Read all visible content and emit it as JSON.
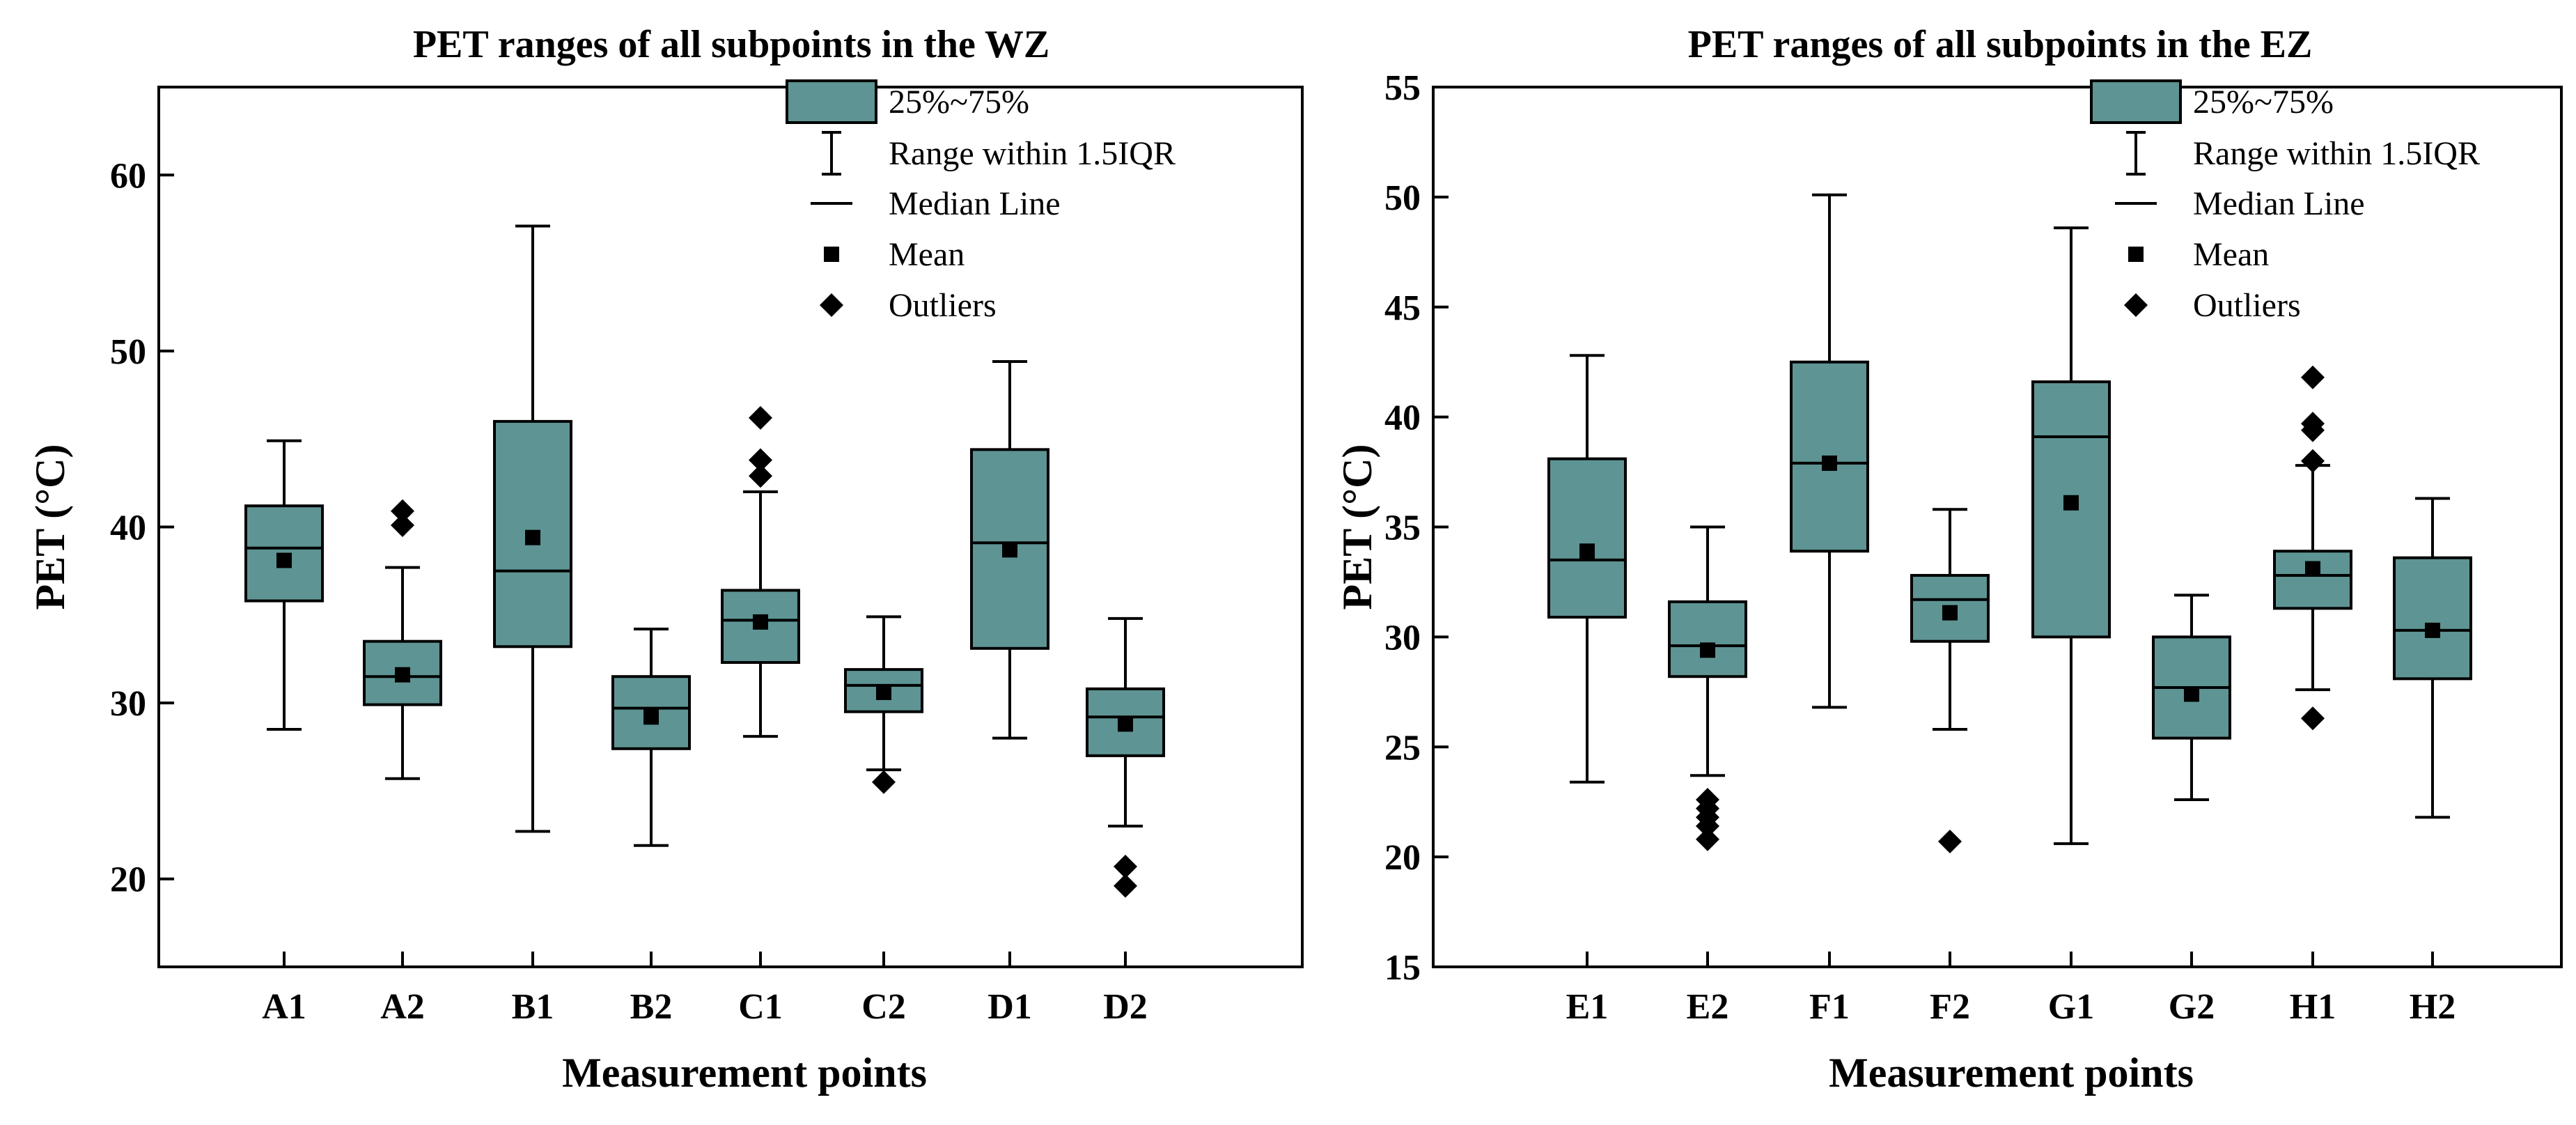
{
  "chart_data": [
    {
      "type": "box",
      "title": "PET ranges of all subpoints in the WZ",
      "xlabel": "Measurement points",
      "ylabel": "PET (°C)",
      "ylim": [
        15,
        65
      ],
      "yticks": [
        20,
        30,
        40,
        50,
        60
      ],
      "box_color": "#5e9494",
      "legend": {
        "position": "top-right",
        "entries": [
          "25%~75%",
          "Range within 1.5IQR",
          "Median Line",
          "Mean",
          "Outliers"
        ]
      },
      "categories": [
        "A1",
        "A2",
        "B1",
        "B2",
        "C1",
        "C2",
        "D1",
        "D2"
      ],
      "boxes": [
        {
          "label": "A1",
          "whisker_low": 28.5,
          "q1": 35.8,
          "median": 38.8,
          "q3": 41.2,
          "whisker_high": 44.9,
          "mean": 38.1,
          "outliers": []
        },
        {
          "label": "A2",
          "whisker_low": 25.7,
          "q1": 29.9,
          "median": 31.5,
          "q3": 33.5,
          "whisker_high": 37.7,
          "mean": 31.6,
          "outliers": [
            40.9,
            40.1
          ]
        },
        {
          "label": "B1",
          "whisker_low": 22.7,
          "q1": 33.2,
          "median": 37.5,
          "q3": 46.0,
          "whisker_high": 57.1,
          "mean": 39.4,
          "outliers": []
        },
        {
          "label": "B2",
          "whisker_low": 21.9,
          "q1": 27.4,
          "median": 29.7,
          "q3": 31.5,
          "whisker_high": 34.2,
          "mean": 29.2,
          "outliers": []
        },
        {
          "label": "C1",
          "whisker_low": 28.1,
          "q1": 32.3,
          "median": 34.7,
          "q3": 36.4,
          "whisker_high": 42.0,
          "mean": 34.6,
          "outliers": [
            46.2,
            43.8,
            42.9
          ]
        },
        {
          "label": "C2",
          "whisker_low": 26.2,
          "q1": 29.5,
          "median": 31.0,
          "q3": 31.9,
          "whisker_high": 34.9,
          "mean": 30.6,
          "outliers": [
            25.5
          ]
        },
        {
          "label": "D1",
          "whisker_low": 28.0,
          "q1": 33.1,
          "median": 39.1,
          "q3": 44.4,
          "whisker_high": 49.4,
          "mean": 38.7,
          "outliers": []
        },
        {
          "label": "D2",
          "whisker_low": 23.0,
          "q1": 27.0,
          "median": 29.2,
          "q3": 30.8,
          "whisker_high": 34.8,
          "mean": 28.8,
          "outliers": [
            20.7,
            19.6
          ]
        }
      ]
    },
    {
      "type": "box",
      "title": "PET ranges of all subpoints in the EZ",
      "xlabel": "Measurement points",
      "ylabel": "PET (°C)",
      "ylim": [
        15,
        55
      ],
      "yticks": [
        15,
        20,
        25,
        30,
        35,
        40,
        45,
        50,
        55
      ],
      "box_color": "#5e9494",
      "legend": {
        "position": "top-right",
        "entries": [
          "25%~75%",
          "Range within 1.5IQR",
          "Median Line",
          "Mean",
          "Outliers"
        ]
      },
      "categories": [
        "E1",
        "E2",
        "F1",
        "F2",
        "G1",
        "G2",
        "H1",
        "H2"
      ],
      "boxes": [
        {
          "label": "E1",
          "whisker_low": 23.4,
          "q1": 30.9,
          "median": 33.5,
          "q3": 38.1,
          "whisker_high": 42.8,
          "mean": 33.9,
          "outliers": []
        },
        {
          "label": "E2",
          "whisker_low": 23.7,
          "q1": 28.2,
          "median": 29.6,
          "q3": 31.6,
          "whisker_high": 35.0,
          "mean": 29.4,
          "outliers": [
            22.6,
            22.2,
            21.8,
            21.4,
            20.8
          ]
        },
        {
          "label": "F1",
          "whisker_low": 26.8,
          "q1": 33.9,
          "median": 37.9,
          "q3": 42.5,
          "whisker_high": 50.1,
          "mean": 37.9,
          "outliers": []
        },
        {
          "label": "F2",
          "whisker_low": 25.8,
          "q1": 29.8,
          "median": 31.7,
          "q3": 32.8,
          "whisker_high": 35.8,
          "mean": 31.1,
          "outliers": [
            20.7
          ]
        },
        {
          "label": "G1",
          "whisker_low": 20.6,
          "q1": 30.0,
          "median": 39.1,
          "q3": 41.6,
          "whisker_high": 48.6,
          "mean": 36.1,
          "outliers": []
        },
        {
          "label": "G2",
          "whisker_low": 22.6,
          "q1": 25.4,
          "median": 27.7,
          "q3": 30.0,
          "whisker_high": 31.9,
          "mean": 27.4,
          "outliers": []
        },
        {
          "label": "H1",
          "whisker_low": 27.6,
          "q1": 31.3,
          "median": 32.8,
          "q3": 33.9,
          "whisker_high": 37.8,
          "mean": 33.1,
          "outliers": [
            41.8,
            39.7,
            39.4,
            38.0,
            26.3
          ]
        },
        {
          "label": "H2",
          "whisker_low": 21.8,
          "q1": 28.1,
          "median": 30.3,
          "q3": 33.6,
          "whisker_high": 36.3,
          "mean": 30.3,
          "outliers": []
        }
      ]
    }
  ]
}
